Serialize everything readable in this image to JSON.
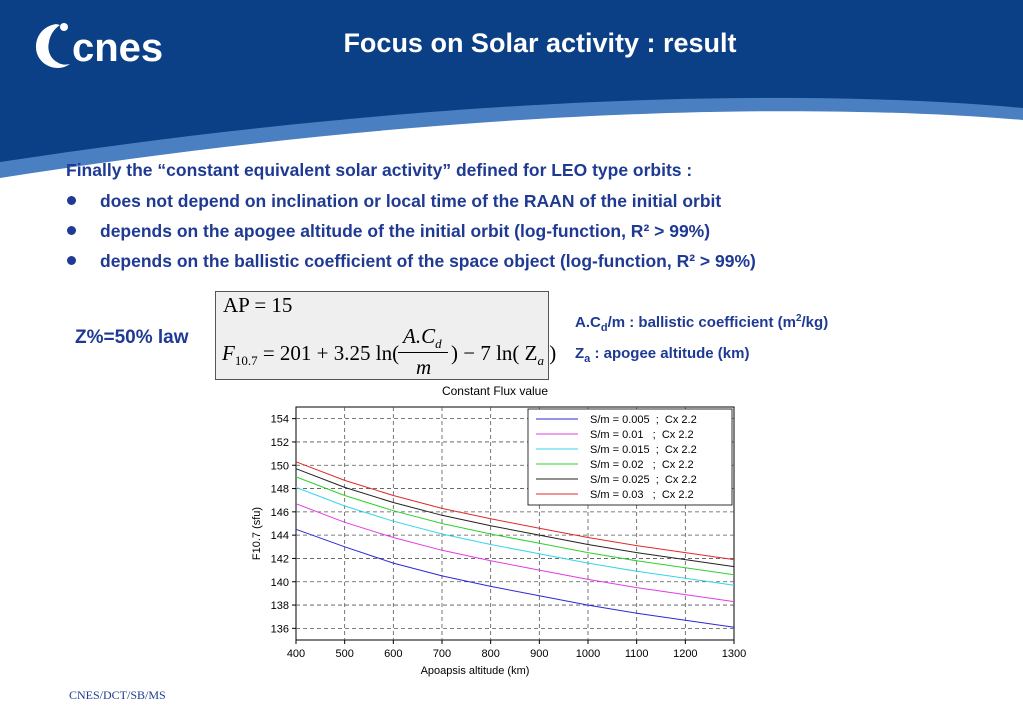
{
  "header": {
    "logo_text": "cnes",
    "title": "Focus on Solar activity : result",
    "bg_color": "#0b3f86",
    "swoosh_color": "#4a7fc1"
  },
  "content": {
    "intro": "Finally the “constant equivalent solar activity” defined for LEO type orbits :",
    "bullets": [
      "does not depend on inclination or local time of the RAAN of the initial orbit",
      "depends on the apogee altitude of the initial orbit (log-function, R² > 99%)",
      "depends on the ballistic coefficient of the space object (log-function, R² > 99%)"
    ],
    "z_label": "Z%=50% law",
    "formula": {
      "line1": "AP = 15",
      "f_symbol": "F",
      "f_sub": "10.7",
      "rhs_start": " = 201 + 3.25 ln(",
      "numerator": "A.C",
      "numerator_sub": "d",
      "denominator": "m",
      "rhs_end_a": ") − 7 ln( Z",
      "rhs_end_sub": "a",
      "rhs_end_b": " )"
    },
    "legend_notes": {
      "ballistic_a": "A.C",
      "ballistic_sub": "d",
      "ballistic_b": "/m  : ballistic coefficient (m",
      "ballistic_sup": "2",
      "ballistic_c": "/kg)",
      "apogee_a": "Z",
      "apogee_sub": "a",
      "apogee_b": " : apogee altitude (km)"
    }
  },
  "footer": {
    "text": "CNES/DCT/SB/MS"
  },
  "chart_data": {
    "type": "line",
    "title": "Constant Flux value",
    "xlabel": "Apoapsis altitude (km)",
    "ylabel": "F10.7 (sfu)",
    "xlim": [
      400,
      1300
    ],
    "ylim": [
      135,
      155
    ],
    "xticks": [
      400,
      500,
      600,
      700,
      800,
      900,
      1000,
      1100,
      1200,
      1300
    ],
    "yticks": [
      136,
      138,
      140,
      142,
      144,
      146,
      148,
      150,
      152,
      154
    ],
    "grid": true,
    "legend_position": "top-right",
    "x": [
      400,
      500,
      600,
      700,
      800,
      900,
      1000,
      1100,
      1200,
      1300
    ],
    "series": [
      {
        "name": "S/m = 0.005  ;  Cx 2.2",
        "color": "#2a2ad6",
        "values": [
          144.5,
          143.0,
          141.6,
          140.5,
          139.6,
          138.8,
          138.0,
          137.3,
          136.7,
          136.1
        ]
      },
      {
        "name": "S/m = 0.01   ;  Cx 2.2",
        "color": "#e23ce2",
        "values": [
          146.7,
          145.1,
          143.8,
          142.7,
          141.8,
          141.0,
          140.2,
          139.5,
          138.9,
          138.3
        ]
      },
      {
        "name": "S/m = 0.015  ;  Cx 2.2",
        "color": "#35d6e8",
        "values": [
          148.1,
          146.5,
          145.2,
          144.1,
          143.2,
          142.4,
          141.6,
          140.9,
          140.3,
          139.7
        ]
      },
      {
        "name": "S/m = 0.02   ;  Cx 2.2",
        "color": "#2ed12e",
        "values": [
          149.0,
          147.4,
          146.1,
          145.0,
          144.1,
          143.3,
          142.5,
          141.8,
          141.2,
          140.6
        ]
      },
      {
        "name": "S/m = 0.025  ;  Cx 2.2",
        "color": "#222222",
        "values": [
          149.7,
          148.1,
          146.8,
          145.7,
          144.8,
          144.0,
          143.2,
          142.5,
          141.9,
          141.3
        ]
      },
      {
        "name": "S/m = 0.03   ;  Cx 2.2",
        "color": "#e02a2a",
        "values": [
          150.3,
          148.7,
          147.4,
          146.3,
          145.4,
          144.6,
          143.8,
          143.1,
          142.5,
          141.9
        ]
      }
    ]
  }
}
